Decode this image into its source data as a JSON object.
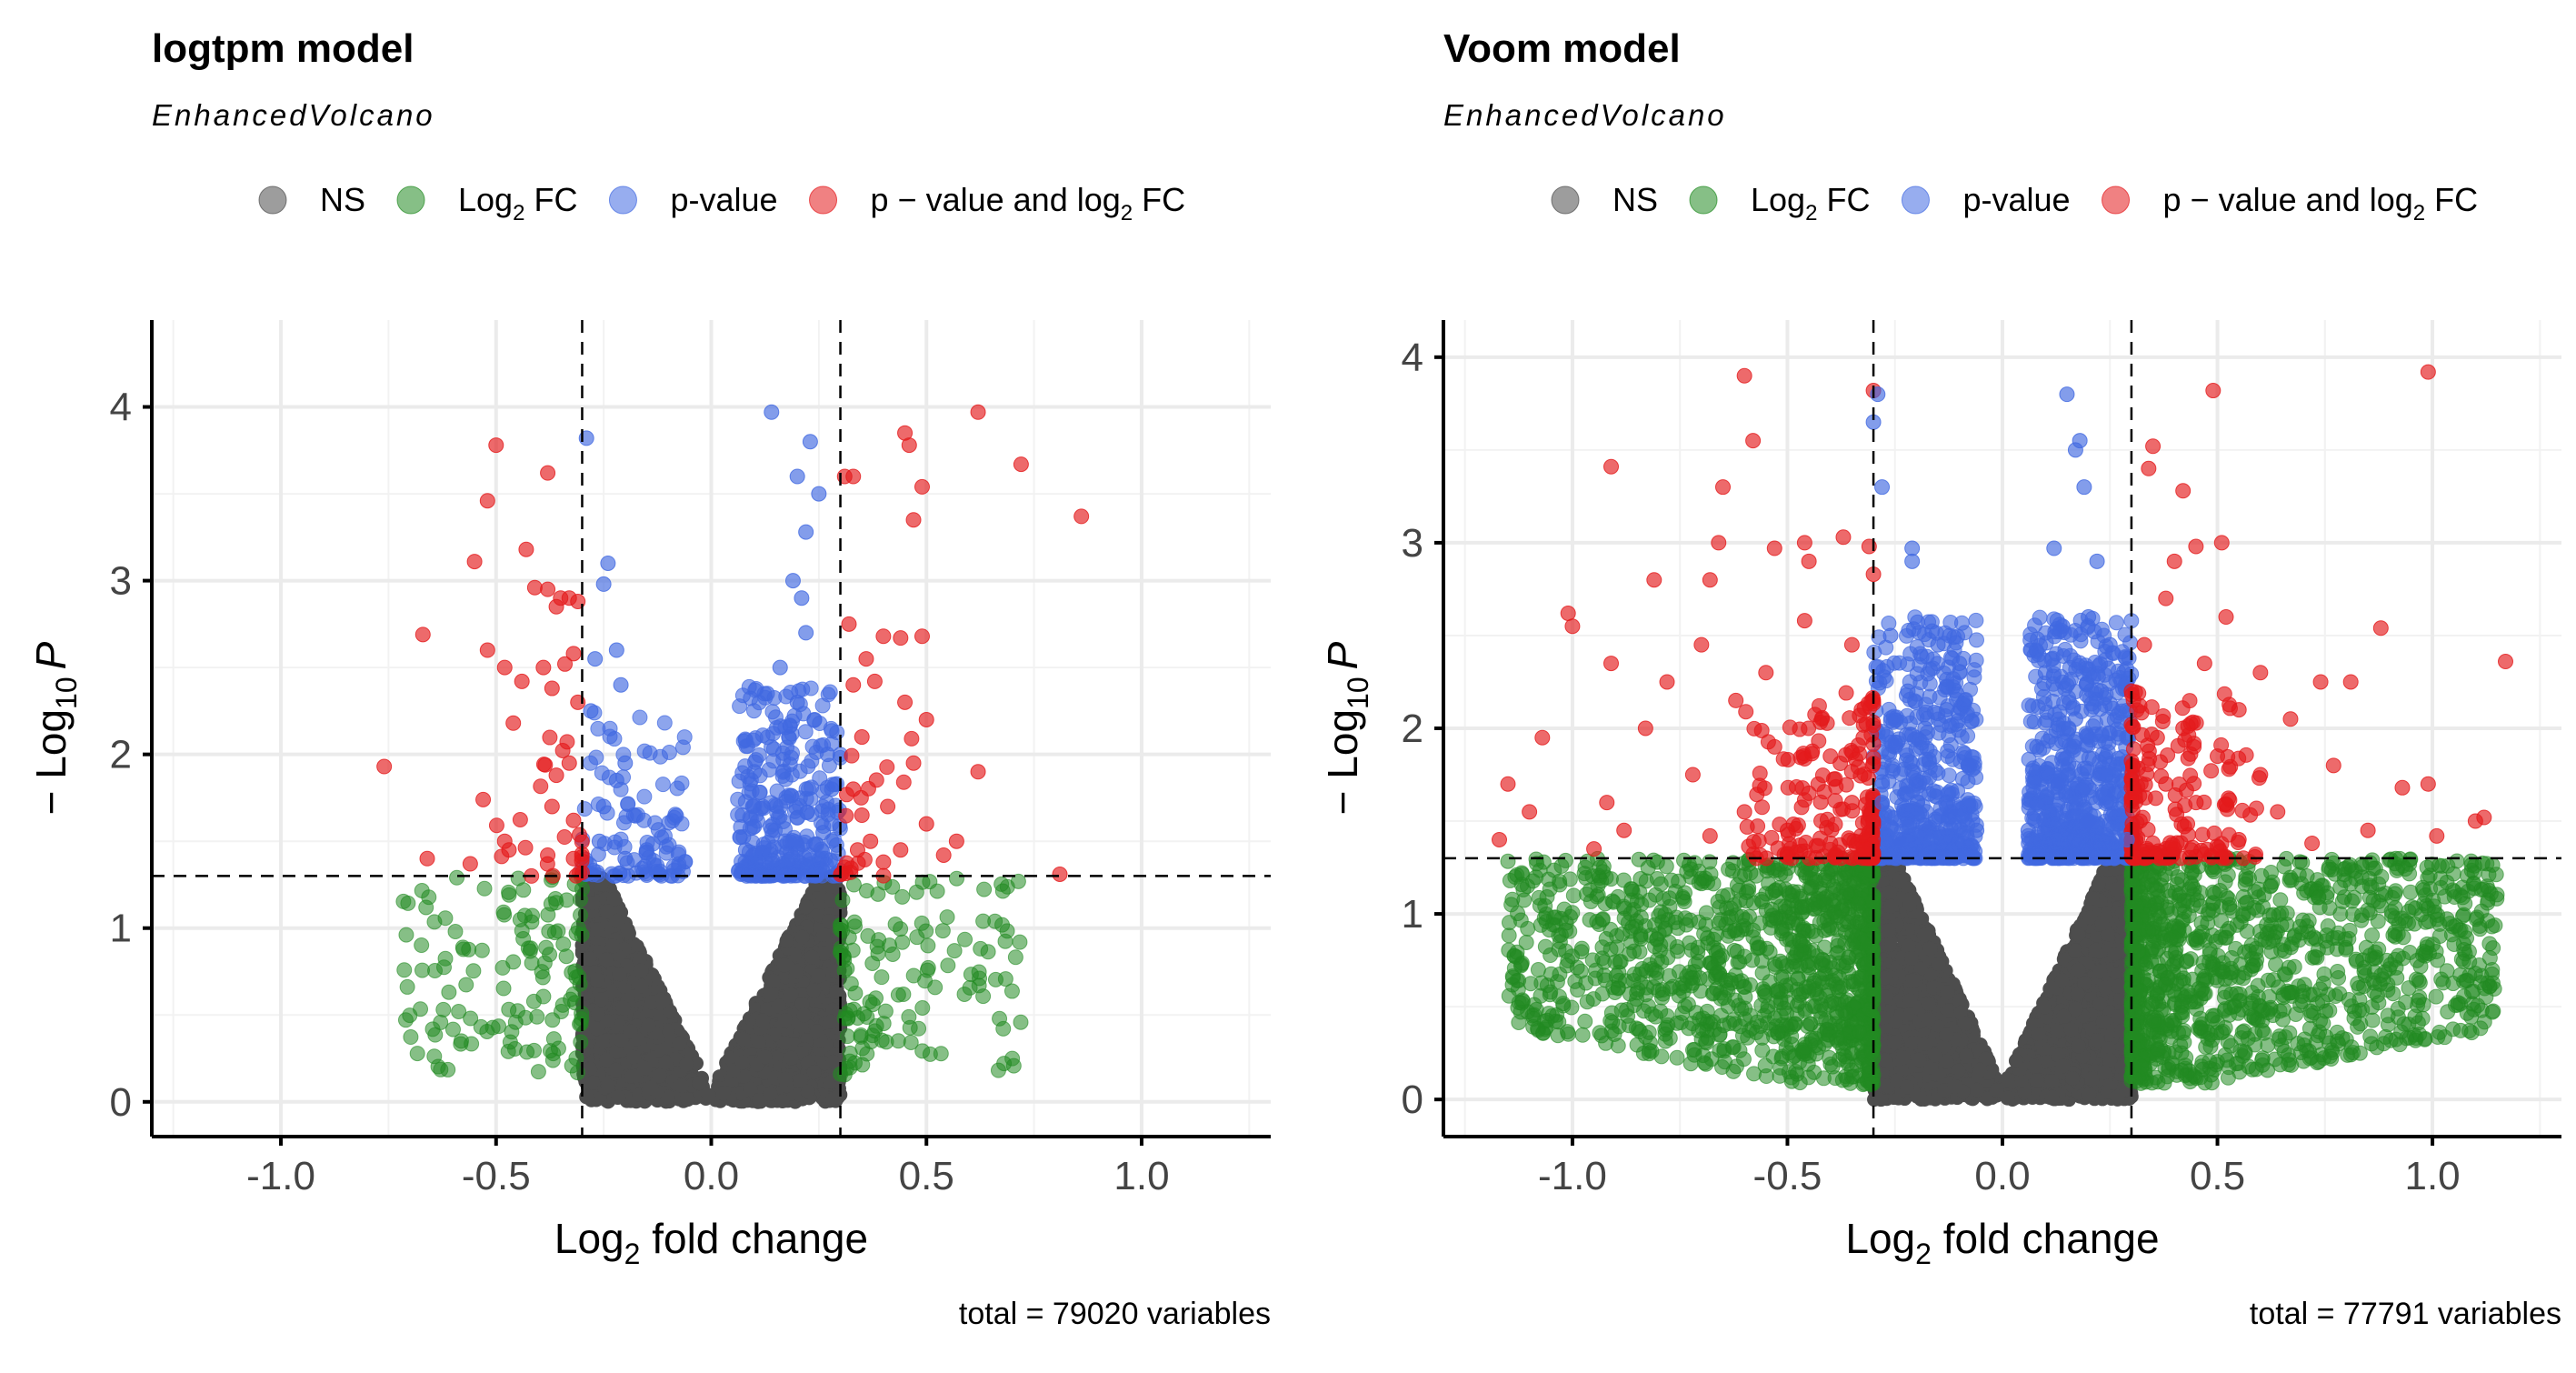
{
  "colors": {
    "NS": "#4d4d4d",
    "Log2 FC": "#228b22",
    "p-value": "#4169e1",
    "p - value and log2 FC": "#e41a1c"
  },
  "legend": [
    {
      "key": "NS",
      "label": "NS"
    },
    {
      "key": "Log2 FC",
      "label": "Log",
      "sub": "2",
      "suffix": " FC"
    },
    {
      "key": "p-value",
      "label": "p-value"
    },
    {
      "key": "p - value and log2 FC",
      "label": "p − value and log",
      "sub": "2",
      "suffix": " FC"
    }
  ],
  "chart_data": [
    {
      "type": "scatter",
      "title": "logtpm model",
      "subtitle": "EnhancedVolcano",
      "xlabel_main": "Log",
      "xlabel_sub": "2",
      "xlabel_rest": " fold change",
      "ylabel_prefix": "− Log",
      "ylabel_sub": "10",
      "ylabel_var": "P",
      "xlim": [
        -1.3,
        1.3
      ],
      "ylim": [
        -0.2,
        4.5
      ],
      "xticks": [
        "-1.0",
        "-0.5",
        "0.0",
        "0.5",
        "1.0"
      ],
      "xtick_values": [
        -1.0,
        -0.5,
        0.0,
        0.5,
        1.0
      ],
      "yticks": [
        "0",
        "1",
        "2",
        "3",
        "4"
      ],
      "ytick_values": [
        0,
        1,
        2,
        3,
        4
      ],
      "fc_cutoff": 0.3,
      "p_cutoff_log10": 1.3,
      "grid": true,
      "legend_position": "top",
      "caption": "total = 79020 variables",
      "total_variables": 79020,
      "highlight_points": {
        "p - value and log2 FC": [
          [
            -0.5,
            3.78
          ],
          [
            -0.38,
            3.62
          ],
          [
            -0.52,
            3.46
          ],
          [
            -0.55,
            3.11
          ],
          [
            -0.43,
            3.18
          ],
          [
            -0.67,
            2.69
          ],
          [
            -0.52,
            2.6
          ],
          [
            -0.38,
            2.95
          ],
          [
            -0.35,
            2.9
          ],
          [
            -0.33,
            2.9
          ],
          [
            -0.31,
            2.88
          ],
          [
            -0.36,
            2.85
          ],
          [
            -0.41,
            2.96
          ],
          [
            -0.48,
            2.5
          ],
          [
            -0.44,
            2.42
          ],
          [
            -0.39,
            2.5
          ],
          [
            -0.34,
            2.52
          ],
          [
            -0.32,
            2.58
          ],
          [
            -0.46,
            2.18
          ],
          [
            -0.37,
            2.38
          ],
          [
            -0.31,
            2.3
          ],
          [
            -0.76,
            1.93
          ],
          [
            -0.53,
            1.74
          ],
          [
            -0.36,
            1.88
          ],
          [
            -0.33,
            1.95
          ],
          [
            -0.37,
            1.7
          ],
          [
            -0.32,
            1.62
          ],
          [
            -0.48,
            1.5
          ],
          [
            -0.66,
            1.4
          ],
          [
            -0.56,
            1.37
          ],
          [
            -0.47,
            1.45
          ],
          [
            -0.38,
            1.42
          ],
          [
            -0.32,
            1.4
          ],
          [
            0.62,
            3.97
          ],
          [
            0.45,
            3.85
          ],
          [
            0.46,
            3.78
          ],
          [
            0.31,
            3.6
          ],
          [
            0.33,
            3.6
          ],
          [
            0.49,
            3.54
          ],
          [
            0.72,
            3.67
          ],
          [
            0.47,
            3.35
          ],
          [
            0.86,
            3.37
          ],
          [
            0.32,
            2.75
          ],
          [
            0.4,
            2.68
          ],
          [
            0.44,
            2.67
          ],
          [
            0.36,
            2.55
          ],
          [
            0.49,
            2.68
          ],
          [
            0.33,
            2.4
          ],
          [
            0.38,
            2.42
          ],
          [
            0.45,
            2.3
          ],
          [
            0.5,
            2.2
          ],
          [
            0.35,
            2.1
          ],
          [
            0.47,
            1.95
          ],
          [
            0.62,
            1.9
          ],
          [
            0.41,
            1.7
          ],
          [
            0.35,
            1.65
          ],
          [
            0.5,
            1.6
          ],
          [
            0.33,
            1.8
          ],
          [
            0.37,
            1.5
          ],
          [
            0.44,
            1.45
          ],
          [
            0.54,
            1.42
          ],
          [
            0.57,
            1.5
          ],
          [
            0.4,
            1.38
          ],
          [
            0.81,
            1.31
          ],
          [
            0.31,
            1.35
          ],
          [
            0.34,
            1.45
          ]
        ],
        "p-value": [
          [
            -0.29,
            3.82
          ],
          [
            -0.24,
            3.1
          ],
          [
            -0.25,
            2.98
          ],
          [
            -0.22,
            2.6
          ],
          [
            -0.27,
            2.55
          ],
          [
            -0.21,
            2.4
          ],
          [
            -0.28,
            2.25
          ],
          [
            -0.2,
            1.95
          ],
          [
            -0.22,
            1.85
          ],
          [
            -0.25,
            1.7
          ],
          [
            -0.18,
            1.65
          ],
          [
            -0.15,
            1.45
          ],
          [
            -0.2,
            1.4
          ],
          [
            -0.26,
            1.5
          ],
          [
            0.14,
            3.97
          ],
          [
            0.23,
            3.8
          ],
          [
            0.2,
            3.6
          ],
          [
            0.25,
            3.5
          ],
          [
            0.22,
            3.28
          ],
          [
            0.19,
            3.0
          ],
          [
            0.21,
            2.9
          ],
          [
            0.22,
            2.7
          ],
          [
            0.16,
            2.5
          ],
          [
            0.13,
            2.35
          ],
          [
            0.2,
            2.3
          ],
          [
            0.24,
            2.2
          ],
          [
            0.18,
            2.1
          ],
          [
            0.1,
            1.9
          ],
          [
            0.27,
            2.0
          ],
          [
            0.28,
            1.8
          ],
          [
            0.12,
            1.7
          ],
          [
            0.26,
            1.55
          ],
          [
            0.08,
            1.45
          ]
        ]
      }
    },
    {
      "type": "scatter",
      "title": "Voom model",
      "subtitle": "EnhancedVolcano",
      "xlabel_main": "Log",
      "xlabel_sub": "2",
      "xlabel_rest": " fold change",
      "ylabel_prefix": "− Log",
      "ylabel_sub": "10",
      "ylabel_var": "P",
      "xlim": [
        -1.3,
        1.3
      ],
      "ylim": [
        -0.2,
        4.2
      ],
      "xticks": [
        "-1.0",
        "-0.5",
        "0.0",
        "0.5",
        "1.0"
      ],
      "xtick_values": [
        -1.0,
        -0.5,
        0.0,
        0.5,
        1.0
      ],
      "yticks": [
        "0",
        "1",
        "2",
        "3",
        "4"
      ],
      "ytick_values": [
        0,
        1,
        2,
        3,
        4
      ],
      "fc_cutoff": 0.3,
      "p_cutoff_log10": 1.3,
      "grid": true,
      "legend_position": "top",
      "caption": "total = 77791 variables",
      "total_variables": 77791,
      "highlight_points": {
        "p - value and log2 FC": [
          [
            -0.6,
            3.9
          ],
          [
            -0.3,
            3.82
          ],
          [
            -0.58,
            3.55
          ],
          [
            -0.91,
            3.41
          ],
          [
            -0.65,
            3.3
          ],
          [
            -0.66,
            3.0
          ],
          [
            -0.37,
            3.03
          ],
          [
            -0.31,
            2.98
          ],
          [
            -0.46,
            3.0
          ],
          [
            -0.53,
            2.97
          ],
          [
            -0.45,
            2.9
          ],
          [
            -0.81,
            2.8
          ],
          [
            -0.68,
            2.8
          ],
          [
            -0.3,
            2.83
          ],
          [
            -1.01,
            2.62
          ],
          [
            -0.46,
            2.58
          ],
          [
            -1.0,
            2.55
          ],
          [
            -0.7,
            2.45
          ],
          [
            -0.35,
            2.45
          ],
          [
            -0.91,
            2.35
          ],
          [
            -0.55,
            2.3
          ],
          [
            -0.78,
            2.25
          ],
          [
            -0.62,
            2.15
          ],
          [
            -0.42,
            2.05
          ],
          [
            -0.83,
            2.0
          ],
          [
            -1.07,
            1.95
          ],
          [
            -0.53,
            1.9
          ],
          [
            -0.4,
            1.85
          ],
          [
            -1.15,
            1.7
          ],
          [
            -0.72,
            1.75
          ],
          [
            -0.45,
            1.65
          ],
          [
            -0.92,
            1.6
          ],
          [
            -1.1,
            1.55
          ],
          [
            -0.6,
            1.55
          ],
          [
            -0.35,
            1.6
          ],
          [
            -1.17,
            1.4
          ],
          [
            -0.88,
            1.45
          ],
          [
            -0.68,
            1.42
          ],
          [
            -0.5,
            1.45
          ],
          [
            -0.4,
            1.38
          ],
          [
            -0.32,
            1.35
          ],
          [
            -0.95,
            1.35
          ],
          [
            0.49,
            3.82
          ],
          [
            0.99,
            3.92
          ],
          [
            0.35,
            3.52
          ],
          [
            0.42,
            3.28
          ],
          [
            0.34,
            3.4
          ],
          [
            0.51,
            3.0
          ],
          [
            0.45,
            2.98
          ],
          [
            0.4,
            2.9
          ],
          [
            0.52,
            2.6
          ],
          [
            0.38,
            2.7
          ],
          [
            0.88,
            2.54
          ],
          [
            0.33,
            2.45
          ],
          [
            0.47,
            2.35
          ],
          [
            0.6,
            2.3
          ],
          [
            0.81,
            2.25
          ],
          [
            0.74,
            2.25
          ],
          [
            1.17,
            2.36
          ],
          [
            0.3,
            2.2
          ],
          [
            0.42,
            2.0
          ],
          [
            0.55,
            2.1
          ],
          [
            0.67,
            2.05
          ],
          [
            0.36,
            1.95
          ],
          [
            0.5,
            1.85
          ],
          [
            0.77,
            1.8
          ],
          [
            0.6,
            1.75
          ],
          [
            0.93,
            1.68
          ],
          [
            0.45,
            1.6
          ],
          [
            0.38,
            1.7
          ],
          [
            0.99,
            1.7
          ],
          [
            0.64,
            1.55
          ],
          [
            1.1,
            1.5
          ],
          [
            1.12,
            1.52
          ],
          [
            0.85,
            1.45
          ],
          [
            0.55,
            1.4
          ],
          [
            0.32,
            1.5
          ],
          [
            0.72,
            1.38
          ],
          [
            1.01,
            1.42
          ],
          [
            0.4,
            1.35
          ]
        ],
        "p-value": [
          [
            -0.29,
            3.8
          ],
          [
            -0.3,
            3.65
          ],
          [
            -0.28,
            3.3
          ],
          [
            -0.21,
            2.97
          ],
          [
            -0.21,
            2.9
          ],
          [
            -0.26,
            2.5
          ],
          [
            -0.15,
            2.45
          ],
          [
            -0.1,
            2.35
          ],
          [
            -0.22,
            2.2
          ],
          [
            -0.18,
            2.0
          ],
          [
            -0.13,
            2.1
          ],
          [
            -0.25,
            1.9
          ],
          [
            -0.08,
            1.8
          ],
          [
            -0.2,
            1.7
          ],
          [
            -0.28,
            1.6
          ],
          [
            -0.12,
            1.55
          ],
          [
            -0.06,
            1.45
          ],
          [
            -0.24,
            1.4
          ],
          [
            0.15,
            3.8
          ],
          [
            0.18,
            3.55
          ],
          [
            0.17,
            3.5
          ],
          [
            0.19,
            3.3
          ],
          [
            0.12,
            2.97
          ],
          [
            0.22,
            2.9
          ],
          [
            0.2,
            2.6
          ],
          [
            0.14,
            2.55
          ],
          [
            0.25,
            2.45
          ],
          [
            0.1,
            2.3
          ],
          [
            0.23,
            2.2
          ],
          [
            0.17,
            2.05
          ],
          [
            0.27,
            1.95
          ],
          [
            0.08,
            1.9
          ],
          [
            0.13,
            1.7
          ],
          [
            0.26,
            1.65
          ],
          [
            0.06,
            1.45
          ],
          [
            0.2,
            1.5
          ],
          [
            0.29,
            1.4
          ]
        ]
      }
    }
  ]
}
